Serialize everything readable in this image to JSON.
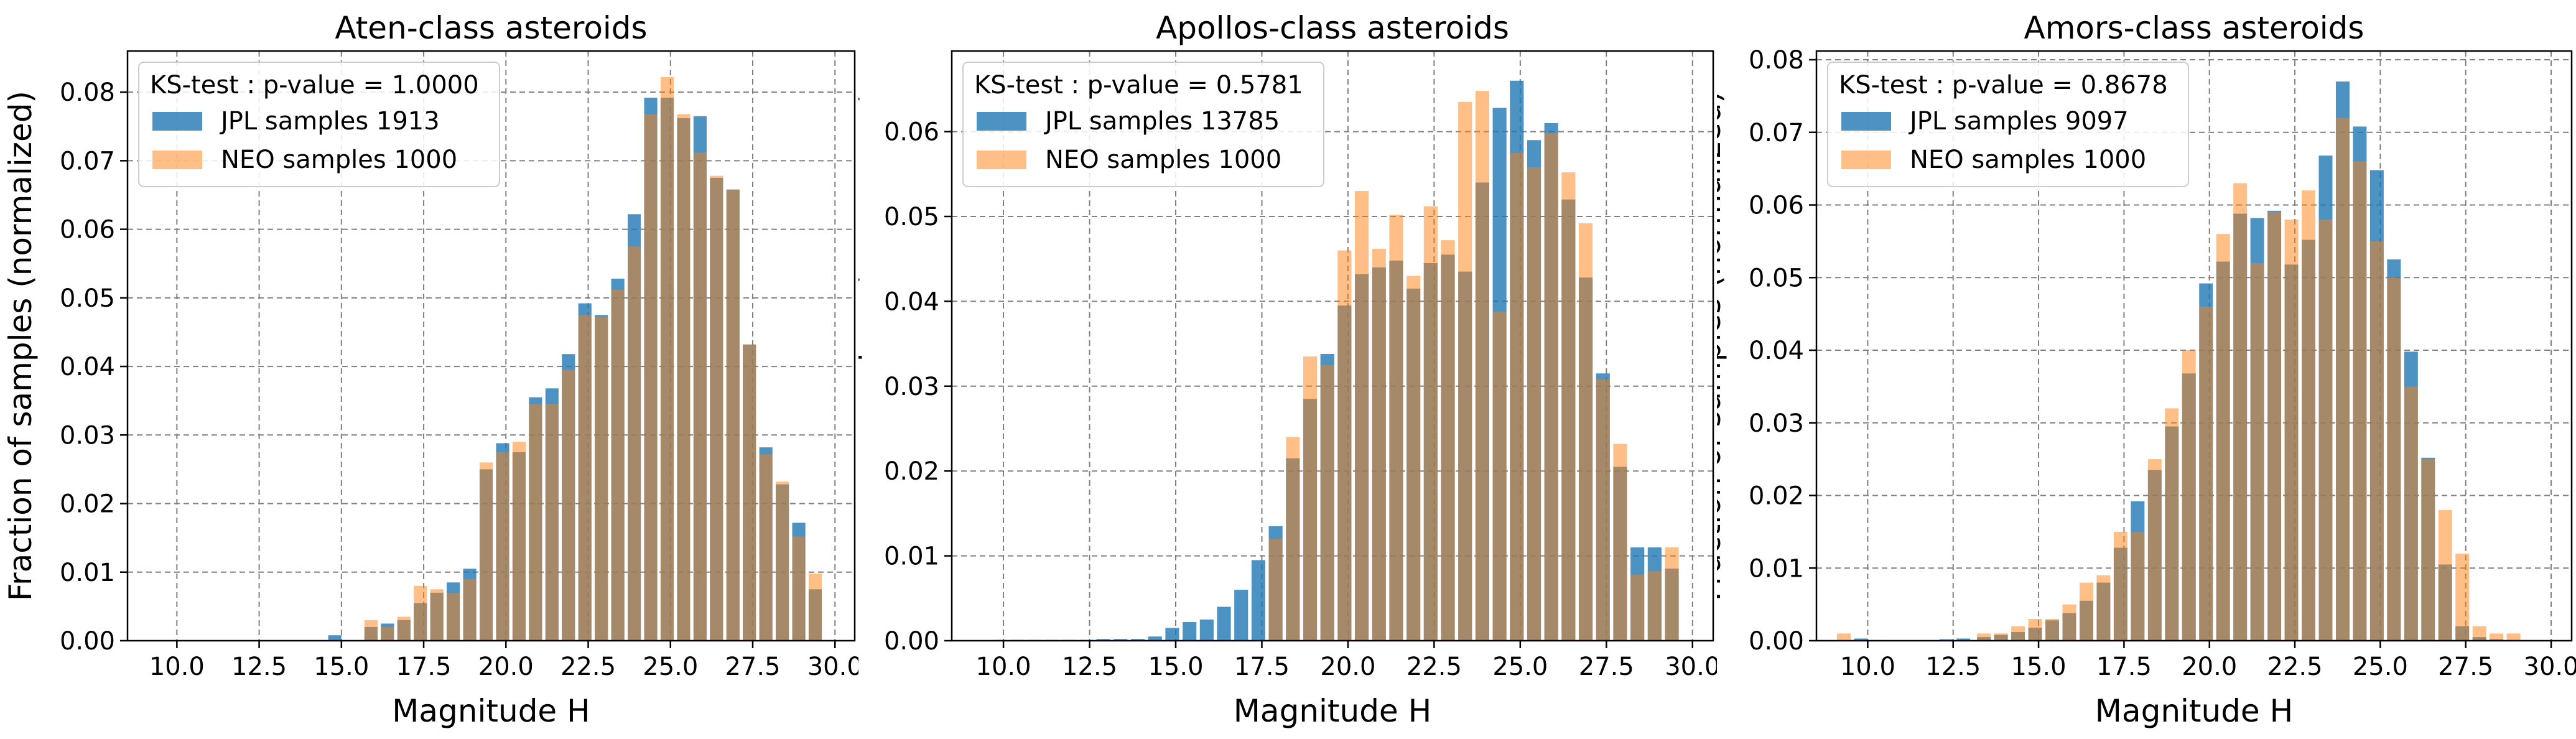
{
  "colors": {
    "jpl": "#1f77b4",
    "neo": "#ff7f0e",
    "grid": "#808080",
    "legend_border": "#cccccc"
  },
  "chart_data": [
    {
      "type": "bar",
      "title": "Aten-class asteroids",
      "xlabel": "Magnitude H",
      "ylabel": "Fraction of samples (normalized)",
      "xlim": [
        8.5,
        30.6
      ],
      "ylim": [
        0,
        0.086
      ],
      "xticks": [
        "10.0",
        "12.5",
        "15.0",
        "17.5",
        "20.0",
        "22.5",
        "25.0",
        "27.5",
        "30.0"
      ],
      "yticks": [
        "0.00",
        "0.01",
        "0.02",
        "0.03",
        "0.04",
        "0.05",
        "0.06",
        "0.07",
        "0.08"
      ],
      "grid": true,
      "legend_title": "KS-test : p-value = 1.0000",
      "legend_position": "upper-left",
      "x": [
        14.8,
        15.9,
        16.4,
        16.9,
        17.4,
        17.9,
        18.4,
        18.9,
        19.4,
        19.9,
        20.4,
        20.9,
        21.4,
        21.9,
        22.4,
        22.9,
        23.4,
        23.9,
        24.4,
        24.9,
        25.4,
        25.9,
        26.4,
        26.9,
        27.4,
        27.9,
        28.4,
        28.9,
        29.4
      ],
      "series": [
        {
          "name": "JPL samples 1913",
          "values": [
            0.0008,
            0.002,
            0.0025,
            0.003,
            0.0055,
            0.007,
            0.0085,
            0.0105,
            0.025,
            0.0288,
            0.0275,
            0.0355,
            0.0368,
            0.0418,
            0.0492,
            0.0475,
            0.0528,
            0.0622,
            0.0792,
            0.0792,
            0.0762,
            0.0765,
            0.0675,
            0.0658,
            0.0432,
            0.0282,
            0.0228,
            0.0172,
            0.0075
          ]
        },
        {
          "name": "NEO samples 1000",
          "values": [
            0.0,
            0.003,
            0.002,
            0.0035,
            0.008,
            0.0075,
            0.007,
            0.009,
            0.026,
            0.0275,
            0.029,
            0.0345,
            0.0345,
            0.0395,
            0.0475,
            0.0472,
            0.0512,
            0.0575,
            0.0768,
            0.0822,
            0.0768,
            0.0712,
            0.0678,
            0.0658,
            0.0432,
            0.0272,
            0.0232,
            0.0152,
            0.0098
          ]
        }
      ]
    },
    {
      "type": "bar",
      "title": "Apollos-class asteroids",
      "xlabel": "Magnitude H",
      "ylabel": "Fraction of samples (normalized)",
      "xlim": [
        8.5,
        30.6
      ],
      "ylim": [
        0,
        0.0695
      ],
      "xticks": [
        "10.0",
        "12.5",
        "15.0",
        "17.5",
        "20.0",
        "22.5",
        "25.0",
        "27.5",
        "30.0"
      ],
      "yticks": [
        "0.00",
        "0.01",
        "0.02",
        "0.03",
        "0.04",
        "0.05",
        "0.06"
      ],
      "grid": true,
      "legend_title": "KS-test : p-value = 0.5781",
      "legend_position": "upper-left",
      "x": [
        9.9,
        10.4,
        10.9,
        11.4,
        11.9,
        12.4,
        12.9,
        13.4,
        13.9,
        14.4,
        14.9,
        15.4,
        15.9,
        16.4,
        16.9,
        17.4,
        17.9,
        18.4,
        18.9,
        19.4,
        19.9,
        20.4,
        20.9,
        21.4,
        21.9,
        22.4,
        22.9,
        23.4,
        23.9,
        24.4,
        24.9,
        25.4,
        25.9,
        26.4,
        26.9,
        27.4,
        27.9,
        28.4,
        28.9,
        29.4
      ],
      "series": [
        {
          "name": "JPL samples 13785",
          "values": [
            0.0001,
            0.0001,
            0.0001,
            0.0001,
            0.0001,
            0.0001,
            0.0002,
            0.0002,
            0.0002,
            0.0005,
            0.0015,
            0.0022,
            0.0025,
            0.004,
            0.006,
            0.0095,
            0.0135,
            0.0215,
            0.0285,
            0.0338,
            0.0395,
            0.0432,
            0.044,
            0.0448,
            0.0415,
            0.0445,
            0.0455,
            0.0435,
            0.054,
            0.0628,
            0.066,
            0.059,
            0.061,
            0.052,
            0.0428,
            0.0315,
            0.0205,
            0.011,
            0.011,
            0.0085
          ]
        },
        {
          "name": "NEO samples 1000",
          "values": [
            0.0,
            0.0,
            0.0,
            0.0,
            0.0,
            0.0,
            0.0,
            0.0,
            0.0,
            0.0,
            0.0,
            0.0,
            0.0,
            0.0,
            0.0,
            0.0,
            0.012,
            0.024,
            0.0335,
            0.0325,
            0.046,
            0.053,
            0.0462,
            0.0502,
            0.043,
            0.0512,
            0.0472,
            0.0635,
            0.0648,
            0.0388,
            0.0575,
            0.0558,
            0.0598,
            0.0552,
            0.0492,
            0.0308,
            0.0232,
            0.0078,
            0.0082,
            0.011
          ]
        }
      ]
    },
    {
      "type": "bar",
      "title": "Amors-class asteroids",
      "xlabel": "Magnitude H",
      "ylabel": "Fraction of samples (normalized)",
      "xlim": [
        8.5,
        30.6
      ],
      "ylim": [
        0,
        0.0812
      ],
      "xticks": [
        "10.0",
        "12.5",
        "15.0",
        "17.5",
        "20.0",
        "22.5",
        "25.0",
        "27.5",
        "30.0"
      ],
      "yticks": [
        "0.00",
        "0.01",
        "0.02",
        "0.03",
        "0.04",
        "0.05",
        "0.06",
        "0.07",
        "0.08"
      ],
      "grid": true,
      "legend_title": "KS-test : p-value = 0.8678",
      "legend_position": "upper-left",
      "x": [
        9.3,
        9.8,
        10.3,
        12.3,
        12.8,
        13.4,
        13.9,
        14.4,
        14.9,
        15.4,
        15.9,
        16.4,
        16.9,
        17.4,
        17.9,
        18.4,
        18.9,
        19.4,
        19.9,
        20.4,
        20.9,
        21.4,
        21.9,
        22.4,
        22.9,
        23.4,
        23.9,
        24.4,
        24.9,
        25.4,
        25.9,
        26.4,
        26.9,
        27.4,
        27.9,
        28.4,
        28.9
      ],
      "series": [
        {
          "name": "JPL samples 9097",
          "values": [
            0.0,
            0.0003,
            0.0001,
            0.0002,
            0.0003,
            0.0005,
            0.0008,
            0.0012,
            0.0018,
            0.0028,
            0.0038,
            0.0055,
            0.008,
            0.0128,
            0.0192,
            0.0235,
            0.0295,
            0.0368,
            0.0492,
            0.0522,
            0.0588,
            0.0582,
            0.0592,
            0.0518,
            0.0552,
            0.0668,
            0.077,
            0.0708,
            0.0648,
            0.0525,
            0.0398,
            0.0252,
            0.0105,
            0.002,
            0.0005,
            0.0002,
            0.0001
          ]
        },
        {
          "name": "NEO samples 1000",
          "values": [
            0.001,
            0.0,
            0.0,
            0.0,
            0.0,
            0.001,
            0.001,
            0.002,
            0.003,
            0.003,
            0.005,
            0.008,
            0.009,
            0.015,
            0.015,
            0.025,
            0.032,
            0.04,
            0.046,
            0.056,
            0.063,
            0.052,
            0.059,
            0.058,
            0.062,
            0.058,
            0.072,
            0.066,
            0.055,
            0.05,
            0.035,
            0.025,
            0.018,
            0.012,
            0.002,
            0.001,
            0.001
          ]
        }
      ]
    }
  ]
}
